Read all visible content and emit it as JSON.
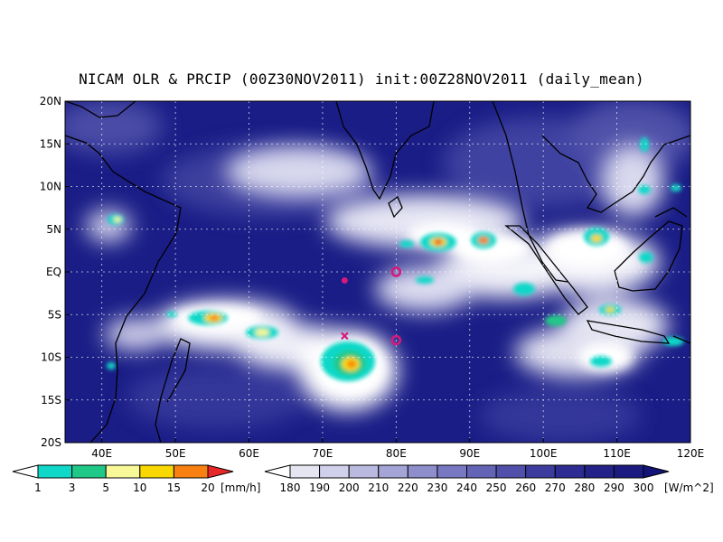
{
  "title": "NICAM OLR & PRCIP (00Z30NOV2011) init:00Z28NOV2011 (daily_mean)",
  "colors": {
    "ocean_clear": "#1a1d86",
    "cloud": "#ffffff",
    "coast": "#000000",
    "grid": "#ffffff",
    "marker": "#d6197a"
  },
  "map": {
    "lon_range": [
      35,
      120
    ],
    "lat_range": [
      -20,
      20
    ],
    "x_ticks": [
      {
        "lon": 40,
        "label": "40E"
      },
      {
        "lon": 50,
        "label": "50E"
      },
      {
        "lon": 60,
        "label": "60E"
      },
      {
        "lon": 70,
        "label": "70E"
      },
      {
        "lon": 80,
        "label": "80E"
      },
      {
        "lon": 90,
        "label": "90E"
      },
      {
        "lon": 100,
        "label": "100E"
      },
      {
        "lon": 110,
        "label": "110E"
      },
      {
        "lon": 120,
        "label": "120E"
      }
    ],
    "y_ticks": [
      {
        "lat": 20,
        "label": "20N"
      },
      {
        "lat": 15,
        "label": "15N"
      },
      {
        "lat": 10,
        "label": "10N"
      },
      {
        "lat": 5,
        "label": "5N"
      },
      {
        "lat": 0,
        "label": "EQ"
      },
      {
        "lat": -5,
        "label": "5S"
      },
      {
        "lat": -10,
        "label": "10S"
      },
      {
        "lat": -15,
        "label": "15S"
      },
      {
        "lat": -20,
        "label": "20S"
      }
    ],
    "grid_lons": [
      40,
      50,
      60,
      70,
      80,
      90,
      100,
      110
    ],
    "grid_lats": [
      15,
      10,
      5,
      0,
      -5,
      -10,
      -15
    ],
    "markers": [
      {
        "lon": 80,
        "lat": 0,
        "shape": "ring"
      },
      {
        "lon": 80,
        "lat": -8,
        "shape": "ring"
      },
      {
        "lon": 73,
        "lat": -1,
        "shape": "dot"
      },
      {
        "lon": 73,
        "lat": -7.5,
        "shape": "cross"
      }
    ]
  },
  "precip_colorbar": {
    "labels": [
      "1",
      "3",
      "5",
      "10",
      "15",
      "20"
    ],
    "unit": "[mm/h]",
    "colors": [
      "#ffffff",
      "#10d8c8",
      "#20c888",
      "#f8f898",
      "#f8d800",
      "#f88010",
      "#e82828"
    ]
  },
  "olr_colorbar": {
    "labels": [
      "180",
      "190",
      "200",
      "210",
      "220",
      "230",
      "240",
      "250",
      "260",
      "270",
      "280",
      "290",
      "300"
    ],
    "unit": "[W/m^2]",
    "colors": [
      "#ffffff",
      "#e6e6f2",
      "#d0d0ea",
      "#babae0",
      "#a4a4d6",
      "#8e8ecc",
      "#7878c2",
      "#6464b6",
      "#5050aa",
      "#3c3c9e",
      "#2c2c92",
      "#222288",
      "#1a1a80",
      "#141478"
    ]
  }
}
